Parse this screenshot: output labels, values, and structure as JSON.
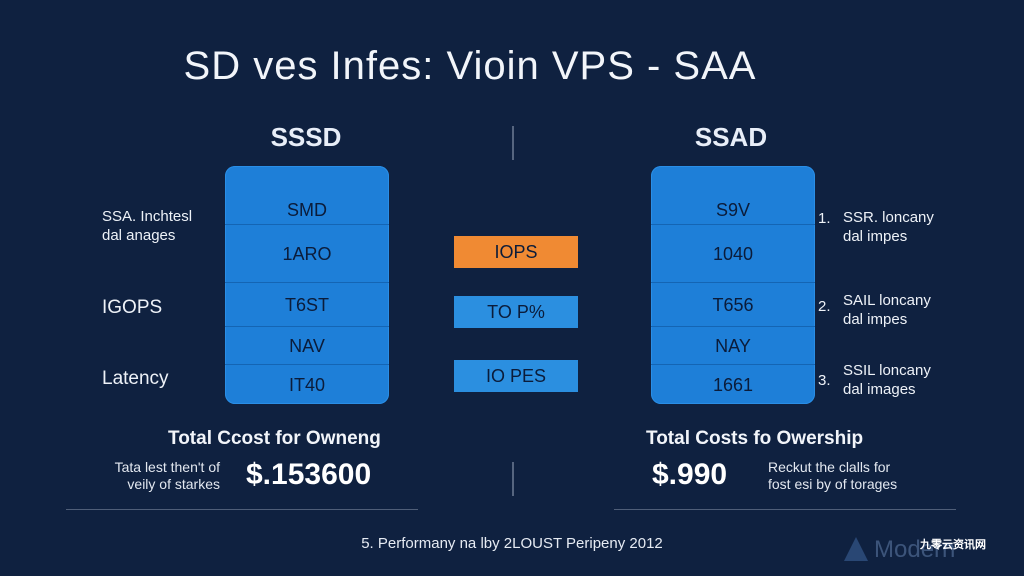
{
  "title": "SD  ves  Infes: Vioin VPS  -   SAA",
  "left": {
    "heading": "SSSD",
    "stack": [
      "SMD",
      "1ARO",
      "T6ST",
      "NAV",
      "IT40"
    ],
    "labels": {
      "note_line1": "SSA. Inchtesl",
      "note_line2": "dal anages",
      "iops": "IGOPS",
      "latency": "Latency"
    },
    "total_heading": "Total  Ccost for Owneng",
    "total_note_line1": "Tata lest then't of",
    "total_note_line2": "veily of starkes",
    "price": "$.153600"
  },
  "middle": {
    "badges": [
      {
        "label": "IOPS",
        "color": "#f08a33"
      },
      {
        "label": "TO P%",
        "color": "#2b8fe0"
      },
      {
        "label": "IO PES",
        "color": "#2b8fe0"
      }
    ]
  },
  "right": {
    "heading": "SSAD",
    "stack": [
      "S9V",
      "1040",
      "T656",
      "NAY",
      "1661"
    ],
    "notes": [
      {
        "number": "1.",
        "line1": "SSR. loncany",
        "line2": "dal impes"
      },
      {
        "number": "2.",
        "line1": "SAIL loncany",
        "line2": "dal impes"
      },
      {
        "number": "3.",
        "line1": "SSIL loncany",
        "line2": "dal images"
      }
    ],
    "total_heading": "Total Costs fo Owership",
    "price": "$.990",
    "total_note_line1": "Reckut the clalls for",
    "total_note_line2": "fost esi by of torages"
  },
  "footer": "5. Performany na lby 2LOUST Peripeny 2012",
  "watermark": {
    "text": "九零云资讯网",
    "logo_text": "Modern"
  },
  "colors": {
    "background": "#0f2140",
    "stack_blue": "#1e7fd8",
    "accent_orange": "#f08a33"
  }
}
